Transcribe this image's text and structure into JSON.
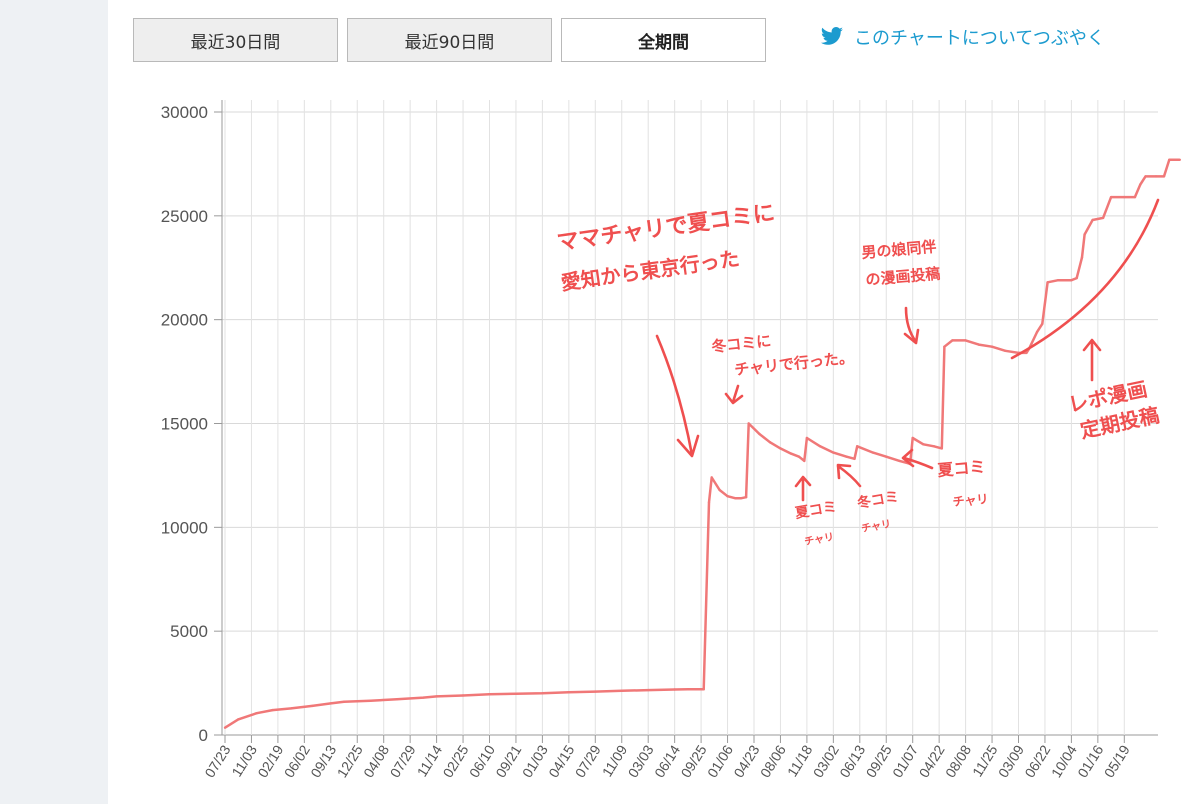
{
  "controls": {
    "range_buttons": [
      "最近30日間",
      "最近90日間",
      "全期間"
    ],
    "active_range": "全期間",
    "tweet_label": "このチャートについてつぶやく"
  },
  "colors": {
    "line": "#f07878",
    "annotation": "#ef4f4f",
    "twitter": "#1c9bcf"
  },
  "chart_data": {
    "type": "line",
    "ylim": [
      0,
      30000
    ],
    "yticks": [
      0,
      5000,
      10000,
      15000,
      20000,
      25000,
      30000
    ],
    "xticks": [
      "07/23",
      "11/03",
      "02/19",
      "06/02",
      "09/13",
      "12/25",
      "04/08",
      "07/29",
      "11/14",
      "02/25",
      "06/10",
      "09/21",
      "01/03",
      "04/15",
      "07/29",
      "11/09",
      "03/03",
      "06/14",
      "09/25",
      "01/06",
      "04/23",
      "08/06",
      "11/18",
      "03/02",
      "06/13",
      "09/25",
      "01/07",
      "04/22",
      "08/08",
      "11/25",
      "03/09",
      "06/22",
      "10/04",
      "01/16",
      "05/19"
    ],
    "series": [
      {
        "points": [
          [
            0,
            350
          ],
          [
            0.5,
            750
          ],
          [
            1.2,
            1050
          ],
          [
            1.8,
            1200
          ],
          [
            2.5,
            1280
          ],
          [
            3.3,
            1400
          ],
          [
            4,
            1520
          ],
          [
            4.5,
            1600
          ],
          [
            5.5,
            1650
          ],
          [
            6.5,
            1720
          ],
          [
            7.5,
            1800
          ],
          [
            8,
            1860
          ],
          [
            9,
            1900
          ],
          [
            10,
            1960
          ],
          [
            11,
            1990
          ],
          [
            12,
            2010
          ],
          [
            13,
            2060
          ],
          [
            14,
            2090
          ],
          [
            15,
            2130
          ],
          [
            16,
            2160
          ],
          [
            17,
            2190
          ],
          [
            17.5,
            2200
          ],
          [
            17.8,
            2200
          ],
          [
            18.1,
            2200
          ],
          [
            18.3,
            11200
          ],
          [
            18.4,
            12400
          ],
          [
            18.7,
            11800
          ],
          [
            19,
            11500
          ],
          [
            19.3,
            11400
          ],
          [
            19.5,
            11400
          ],
          [
            19.7,
            11450
          ],
          [
            19.8,
            15000
          ],
          [
            20.2,
            14500
          ],
          [
            20.6,
            14100
          ],
          [
            21,
            13800
          ],
          [
            21.4,
            13550
          ],
          [
            21.7,
            13400
          ],
          [
            21.9,
            13200
          ],
          [
            22,
            14300
          ],
          [
            22.5,
            13900
          ],
          [
            23,
            13600
          ],
          [
            23.5,
            13400
          ],
          [
            23.8,
            13300
          ],
          [
            23.9,
            13900
          ],
          [
            24.5,
            13600
          ],
          [
            25,
            13400
          ],
          [
            25.5,
            13200
          ],
          [
            25.8,
            13100
          ],
          [
            25.9,
            13050
          ],
          [
            26,
            14300
          ],
          [
            26.4,
            14000
          ],
          [
            26.8,
            13900
          ],
          [
            27.1,
            13800
          ],
          [
            27.2,
            18700
          ],
          [
            27.5,
            19000
          ],
          [
            28,
            19000
          ],
          [
            28.5,
            18800
          ],
          [
            29,
            18700
          ],
          [
            29.5,
            18500
          ],
          [
            30,
            18400
          ],
          [
            30.3,
            18400
          ],
          [
            30.4,
            18600
          ],
          [
            30.7,
            19400
          ],
          [
            30.9,
            19800
          ],
          [
            31.1,
            21800
          ],
          [
            31.5,
            21900
          ],
          [
            32,
            21900
          ],
          [
            32.2,
            22000
          ],
          [
            32.4,
            23000
          ],
          [
            32.5,
            24100
          ],
          [
            32.8,
            24800
          ],
          [
            33.2,
            24900
          ],
          [
            33.5,
            25900
          ],
          [
            34,
            25900
          ],
          [
            34.4,
            25900
          ],
          [
            34.6,
            26500
          ],
          [
            34.8,
            26900
          ],
          [
            35.2,
            26900
          ],
          [
            35.5,
            26900
          ],
          [
            35.7,
            27700
          ],
          [
            36.1,
            27700
          ]
        ]
      }
    ],
    "annotations": [
      {
        "lines": [
          "ママチャリで夏コミに",
          "愛知から東京行った"
        ]
      },
      {
        "lines": [
          "冬コミに",
          "チャリで行った。"
        ]
      },
      {
        "lines": [
          "男の娘同伴",
          "の漫画投稿"
        ]
      },
      {
        "lines": [
          "夏コミ",
          "チャリ"
        ]
      },
      {
        "lines": [
          "冬コミ",
          "チャリ"
        ]
      },
      {
        "lines": [
          "夏コミ",
          "チャリ"
        ]
      },
      {
        "lines": [
          "レポ漫画",
          "定期投稿"
        ]
      }
    ]
  }
}
